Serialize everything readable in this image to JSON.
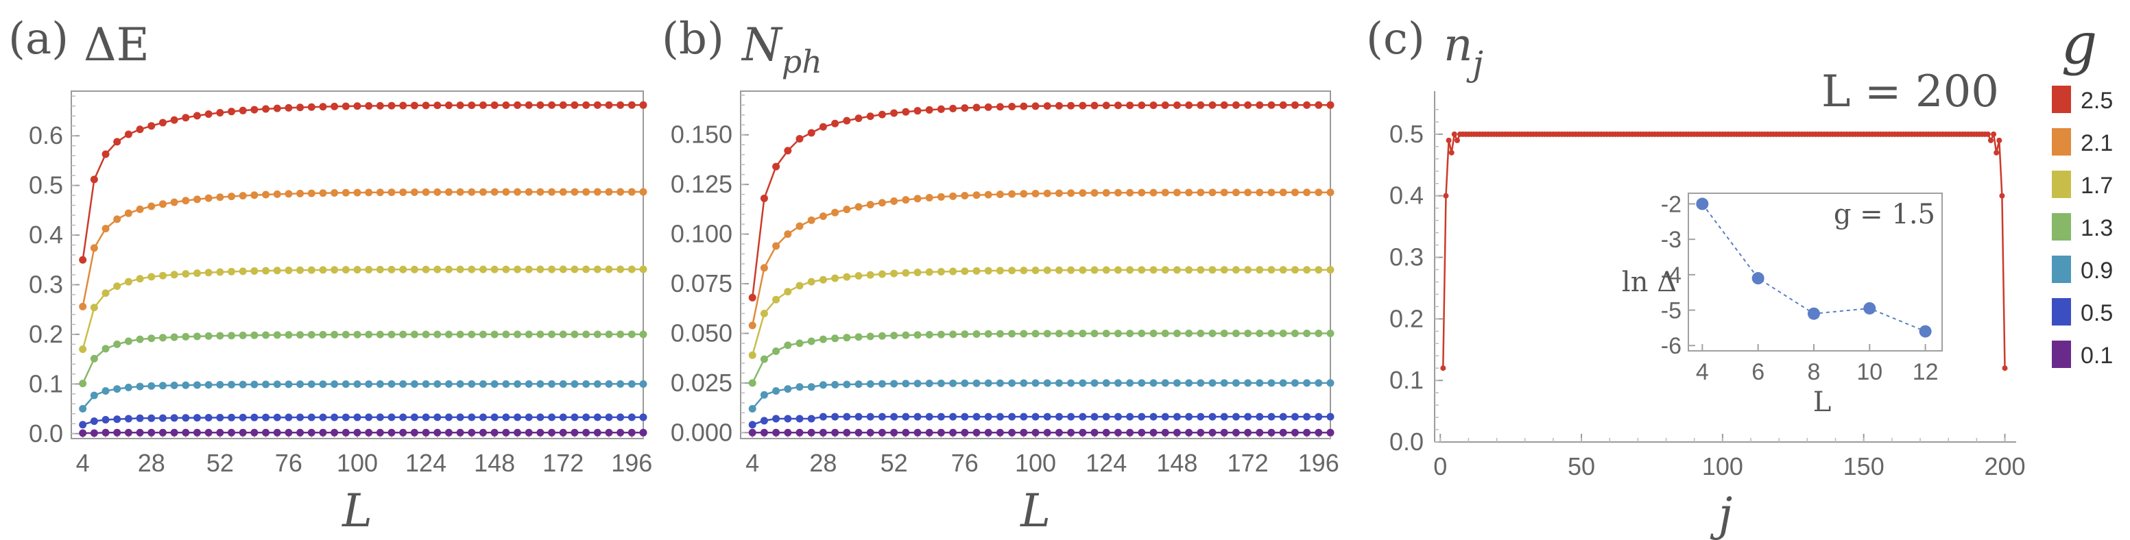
{
  "chart_data": [
    {
      "panel": "(a)",
      "type": "line",
      "title": "ΔE",
      "xlabel": "L",
      "ylabel": "",
      "xticks": [
        4,
        28,
        52,
        76,
        100,
        124,
        148,
        172,
        196
      ],
      "yticks": [
        "0.0",
        "0.1",
        "0.2",
        "0.3",
        "0.4",
        "0.5",
        "0.6"
      ],
      "xlim": [
        0,
        200
      ],
      "ylim": [
        -0.01,
        0.69
      ],
      "x_start": 4,
      "x_step": 4,
      "x_end": 200,
      "series": [
        {
          "name": "2.5",
          "color": "#cc3a2b",
          "first": [
            0.35,
            0.512,
            0.563,
            0.588,
            0.603,
            0.613,
            0.62
          ],
          "limit": 0.662
        },
        {
          "name": "2.1",
          "color": "#e08a3c",
          "first": [
            0.256,
            0.374,
            0.413,
            0.432,
            0.444,
            0.452,
            0.458
          ],
          "limit": 0.487
        },
        {
          "name": "1.7",
          "color": "#c9bd4a",
          "first": [
            0.17,
            0.254,
            0.283,
            0.297,
            0.306,
            0.312,
            0.316
          ],
          "limit": 0.331
        },
        {
          "name": "1.3",
          "color": "#86b868",
          "first": [
            0.101,
            0.151,
            0.171,
            0.18,
            0.186,
            0.19,
            0.192
          ],
          "limit": 0.2
        },
        {
          "name": "0.9",
          "color": "#4f97b8",
          "first": [
            0.05,
            0.077,
            0.086,
            0.09,
            0.093,
            0.095,
            0.096
          ],
          "limit": 0.1
        },
        {
          "name": "0.5",
          "color": "#3b4fc2",
          "first": [
            0.018,
            0.025,
            0.028,
            0.029,
            0.03,
            0.031,
            0.031
          ],
          "limit": 0.033
        },
        {
          "name": "0.1",
          "color": "#6a2a8c",
          "first": [
            0.001,
            0.001,
            0.002,
            0.002,
            0.002,
            0.002,
            0.002
          ],
          "limit": 0.002
        }
      ]
    },
    {
      "panel": "(b)",
      "type": "line",
      "title": "N_ph",
      "xlabel": "L",
      "ylabel": "",
      "xticks": [
        4,
        28,
        52,
        76,
        100,
        124,
        148,
        172,
        196
      ],
      "yticks": [
        "0.000",
        "0.025",
        "0.050",
        "0.075",
        "0.100",
        "0.125",
        "0.150"
      ],
      "xlim": [
        0,
        200
      ],
      "ylim": [
        -0.003,
        0.172
      ],
      "x_start": 4,
      "x_step": 4,
      "x_end": 200,
      "series": [
        {
          "name": "2.5",
          "color": "#cc3a2b",
          "first": [
            0.068,
            0.118,
            0.134,
            0.142,
            0.148,
            0.151,
            0.154
          ],
          "limit": 0.165
        },
        {
          "name": "2.1",
          "color": "#e08a3c",
          "first": [
            0.054,
            0.083,
            0.094,
            0.1,
            0.104,
            0.107,
            0.109
          ],
          "limit": 0.121
        },
        {
          "name": "1.7",
          "color": "#c9bd4a",
          "first": [
            0.039,
            0.06,
            0.067,
            0.071,
            0.074,
            0.076,
            0.077
          ],
          "limit": 0.082
        },
        {
          "name": "1.3",
          "color": "#86b868",
          "first": [
            0.025,
            0.037,
            0.041,
            0.044,
            0.045,
            0.046,
            0.047
          ],
          "limit": 0.05
        },
        {
          "name": "0.9",
          "color": "#4f97b8",
          "first": [
            0.012,
            0.019,
            0.021,
            0.022,
            0.023,
            0.023,
            0.024
          ],
          "limit": 0.025
        },
        {
          "name": "0.5",
          "color": "#3b4fc2",
          "first": [
            0.004,
            0.006,
            0.007,
            0.007,
            0.007,
            0.007,
            0.008
          ],
          "limit": 0.008
        },
        {
          "name": "0.1",
          "color": "#6a2a8c",
          "first": [
            0.0,
            0.0,
            0.0,
            0.0,
            0.0,
            0.0,
            0.0
          ],
          "limit": 0.0
        }
      ]
    },
    {
      "panel": "(c)",
      "type": "line",
      "title": "n_j",
      "annotation": "L = 200",
      "xlabel": "j",
      "ylabel": "",
      "xticks": [
        "0",
        "50",
        "100",
        "150",
        "200"
      ],
      "yticks": [
        "0.0",
        "0.1",
        "0.2",
        "0.3",
        "0.4",
        "0.5"
      ],
      "xlim": [
        -2,
        204
      ],
      "ylim": [
        0,
        0.57
      ],
      "series": [
        {
          "name": "2.5",
          "color": "#cc3a2b",
          "left_edge": [
            [
              1,
              0.12
            ],
            [
              2,
              0.4
            ],
            [
              3,
              0.49
            ],
            [
              4,
              0.47
            ],
            [
              5,
              0.5
            ],
            [
              6,
              0.49
            ],
            [
              7,
              0.5
            ],
            [
              8,
              0.5
            ]
          ],
          "right_edge": [
            [
              193,
              0.5
            ],
            [
              194,
              0.5
            ],
            [
              195,
              0.49
            ],
            [
              196,
              0.5
            ],
            [
              197,
              0.47
            ],
            [
              198,
              0.49
            ],
            [
              199,
              0.4
            ],
            [
              200,
              0.12
            ]
          ],
          "bulk": 0.5
        }
      ],
      "inset": {
        "type": "line",
        "label": "g = 1.5",
        "xlabel": "L",
        "ylabel": "ln Δ",
        "x": [
          4,
          6,
          8,
          10,
          12
        ],
        "y": [
          -2.0,
          -4.1,
          -5.1,
          -4.95,
          -5.6
        ],
        "xticks": [
          "4",
          "6",
          "8",
          "10",
          "12"
        ],
        "yticks": [
          "-2",
          "-3",
          "-4",
          "-5",
          "-6"
        ],
        "xlim": [
          3.5,
          12.6
        ],
        "ylim": [
          -6.15,
          -1.7
        ],
        "color": "#5b7ec7"
      }
    }
  ],
  "legend": {
    "title": "g",
    "items": [
      {
        "label": "2.5",
        "color": "#cc3a2b"
      },
      {
        "label": "2.1",
        "color": "#e08a3c"
      },
      {
        "label": "1.7",
        "color": "#c9bd4a"
      },
      {
        "label": "1.3",
        "color": "#86b868"
      },
      {
        "label": "0.9",
        "color": "#4f97b8"
      },
      {
        "label": "0.5",
        "color": "#3b4fc2"
      },
      {
        "label": "0.1",
        "color": "#6a2a8c"
      }
    ]
  },
  "labels": {
    "a_tag": "(a)",
    "a_title": "ΔE",
    "b_tag": "(b)",
    "b_title_main": "N",
    "b_title_sub": "ph",
    "c_tag": "(c)",
    "c_title_main": "n",
    "c_title_sub": "j"
  }
}
